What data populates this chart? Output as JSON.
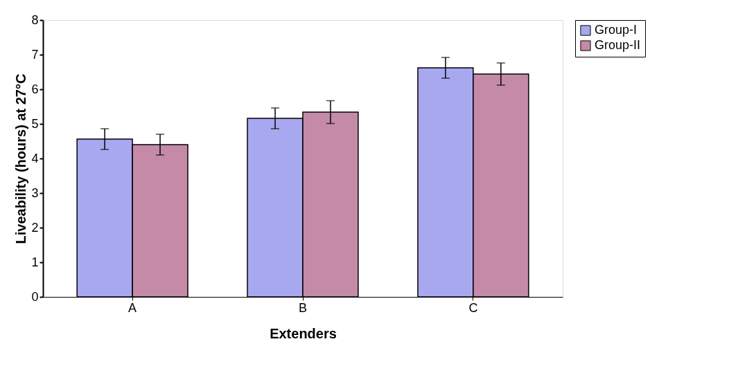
{
  "chart_data": {
    "type": "bar",
    "xlabel": "Extenders",
    "ylabel": "Liveability (hours)  at 27°C",
    "categories": [
      "A",
      "B",
      "C"
    ],
    "series": [
      {
        "name": "Group-I",
        "color": "#a8a8f0",
        "values": [
          4.56,
          5.16,
          6.62
        ],
        "errors": [
          0.3,
          0.3,
          0.3
        ]
      },
      {
        "name": "Group-II",
        "color": "#c48aa8",
        "values": [
          4.4,
          5.34,
          6.44
        ],
        "errors": [
          0.3,
          0.33,
          0.32
        ]
      }
    ],
    "ylim": [
      0,
      8
    ],
    "yticks": [
      0,
      1,
      2,
      3,
      4,
      5,
      6,
      7,
      8
    ],
    "grid": false,
    "legend": "right"
  }
}
